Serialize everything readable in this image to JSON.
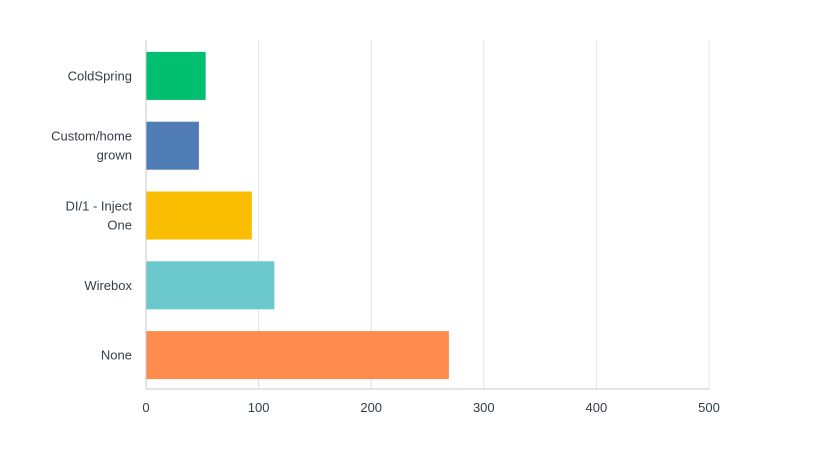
{
  "chart_data": {
    "type": "bar",
    "orientation": "horizontal",
    "categories": [
      [
        "ColdSpring"
      ],
      [
        "Custom/home",
        "grown"
      ],
      [
        "DI/1 - Inject",
        "One"
      ],
      [
        "Wirebox"
      ],
      [
        "None"
      ]
    ],
    "values": [
      53,
      47,
      94,
      114,
      269
    ],
    "colors": [
      "#00bf6f",
      "#507cb6",
      "#f9be00",
      "#6bc8cd",
      "#ff8b4f"
    ],
    "xlim": [
      0,
      500
    ],
    "xticks": [
      "0",
      "100",
      "200",
      "300",
      "400",
      "500"
    ],
    "grid": true,
    "title": "",
    "xlabel": "",
    "ylabel": ""
  }
}
